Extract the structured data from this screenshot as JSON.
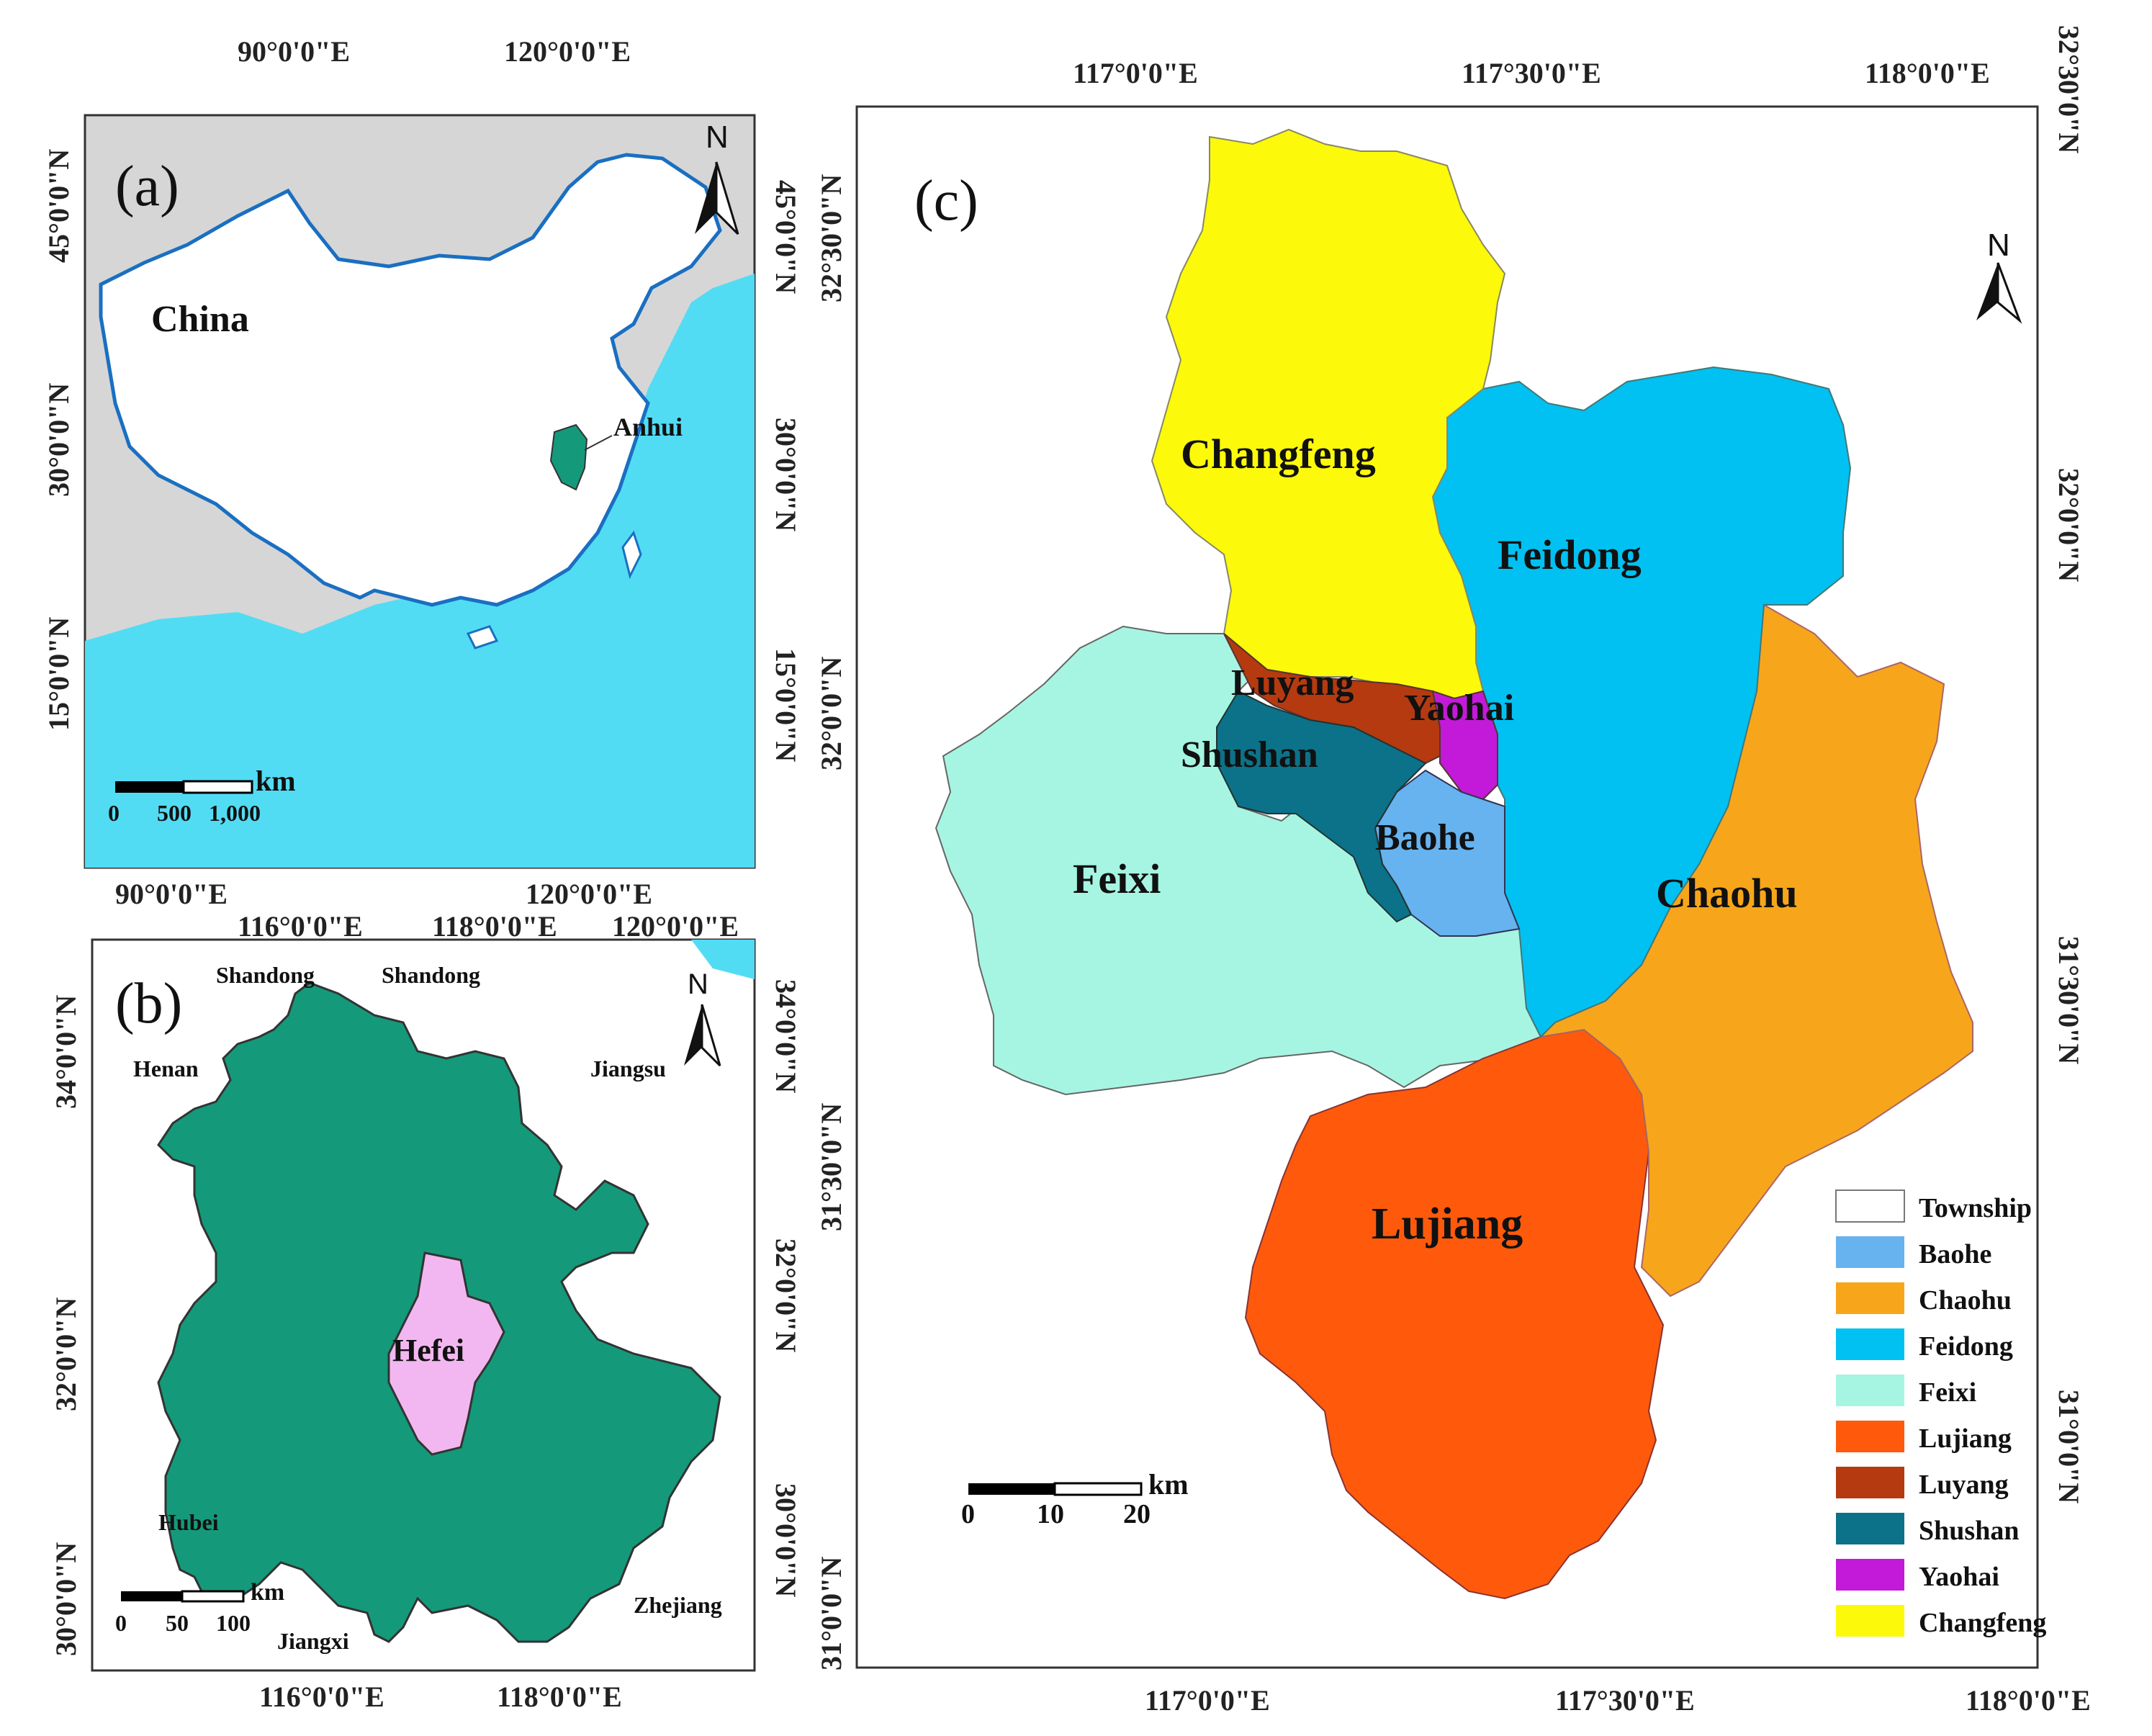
{
  "panel_a": {
    "letter": "(a)",
    "country_label": "China",
    "province_label": "Anhui",
    "north": "N",
    "top_lon": [
      "90°0'0\"E",
      "120°0'0\"E"
    ],
    "bottom_lon": [
      "90°0'0\"E",
      "120°0'0\"E"
    ],
    "left_lat": [
      "45°0'0\"N",
      "30°0'0\"N",
      "15°0'0\"N"
    ],
    "right_lat": [
      "45°0'0\"N",
      "30°0'0\"N",
      "15°0'0\"N"
    ],
    "scale_unit": "km",
    "scale_ticks": [
      "0",
      "500",
      "1,000"
    ]
  },
  "panel_b": {
    "letter": "(b)",
    "city_label": "Hefei",
    "north": "N",
    "neighbors": [
      "Shandong",
      "Shandong",
      "Henan",
      "Jiangsu",
      "Hubei",
      "Jiangxi",
      "Zhejiang"
    ],
    "top_lon": [
      "116°0'0\"E",
      "118°0'0\"E",
      "120°0'0\"E"
    ],
    "bottom_lon": [
      "116°0'0\"E",
      "118°0'0\"E"
    ],
    "left_lat": [
      "34°0'0\"N",
      "32°0'0\"N",
      "30°0'0\"N"
    ],
    "right_lat": [
      "34°0'0\"N",
      "32°0'0\"N",
      "30°0'0\"N"
    ],
    "scale_unit": "km",
    "scale_ticks": [
      "0",
      "50",
      "100"
    ]
  },
  "panel_c": {
    "letter": "(c)",
    "north": "N",
    "top_lon": [
      "117°0'0\"E",
      "117°30'0\"E",
      "118°0'0\"E"
    ],
    "bottom_lon": [
      "117°0'0\"E",
      "117°30'0\"E",
      "118°0'0\"E"
    ],
    "left_lat": [
      "32°30'0\"N",
      "32°0'0\"N",
      "31°30'0\"N",
      "31°0'0\"N"
    ],
    "right_lat": [
      "32°30'0\"N",
      "32°0'0\"N",
      "31°30'0\"N",
      "31°0'0\"N"
    ],
    "district_labels": [
      "Changfeng",
      "Feidong",
      "Luyang",
      "Yaohai",
      "Shushan",
      "Baohe",
      "Feixi",
      "Chaohu",
      "Lujiang"
    ],
    "scale_unit": "km",
    "scale_ticks": [
      "0",
      "10",
      "20"
    ],
    "legend": [
      {
        "label": "Township",
        "color": "#ffffff"
      },
      {
        "label": "Baohe",
        "color": "#66b3ef"
      },
      {
        "label": "Chaohu",
        "color": "#f7a61b"
      },
      {
        "label": "Feidong",
        "color": "#00c1f1"
      },
      {
        "label": "Feixi",
        "color": "#a6f5e2"
      },
      {
        "label": "Lujiang",
        "color": "#ff5a0c"
      },
      {
        "label": "Luyang",
        "color": "#b53a10"
      },
      {
        "label": "Shushan",
        "color": "#0b7289"
      },
      {
        "label": "Yaohai",
        "color": "#c21ad8"
      },
      {
        "label": "Changfeng",
        "color": "#fcf90a"
      }
    ]
  },
  "colors": {
    "sea": "#52dcf4",
    "land_other": "#d6d6d6",
    "china": "#ffffff",
    "border": "#1a6fc1",
    "anhui": "#149a7a",
    "hefei": "#f2b7f0"
  }
}
